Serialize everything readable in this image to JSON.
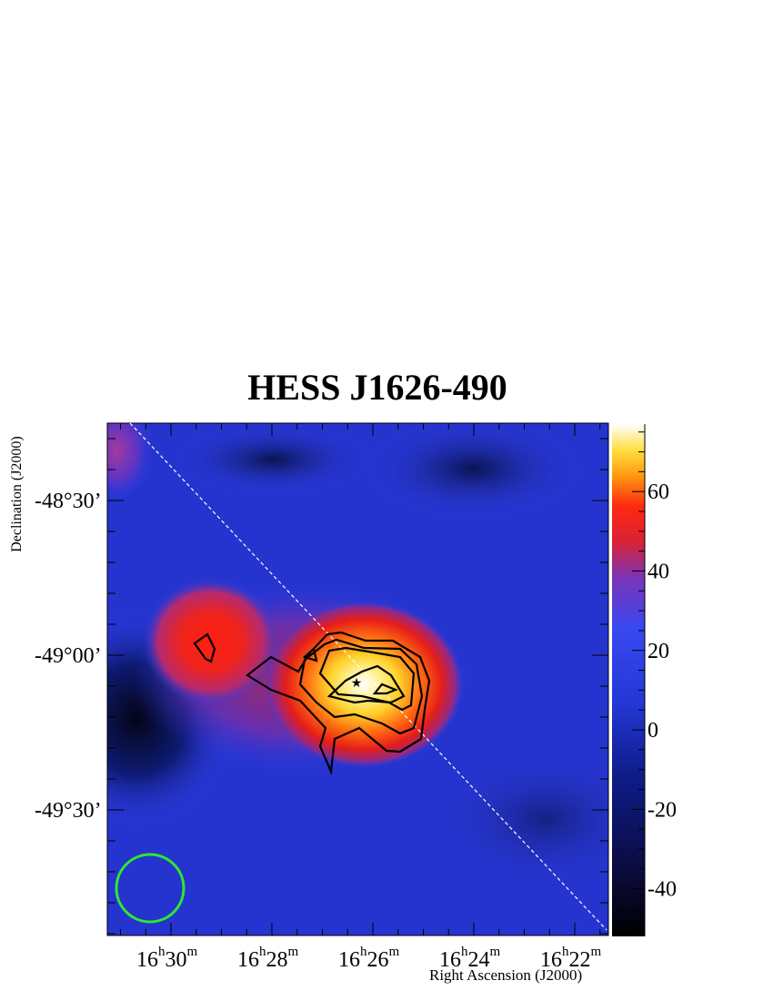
{
  "chart_data": {
    "type": "heatmap",
    "title": "HESS J1626-490",
    "xlabel": "Right Ascension (J2000)",
    "ylabel": "Declination (J2000)",
    "x_ticks": [
      {
        "h": "16",
        "m": "30"
      },
      {
        "h": "16",
        "m": "28"
      },
      {
        "h": "16",
        "m": "26"
      },
      {
        "h": "16",
        "m": "24"
      },
      {
        "h": "16",
        "m": "22"
      }
    ],
    "y_ticks": [
      "-48°30’",
      "-49°00’",
      "-49°30’"
    ],
    "colorbar": {
      "range": [
        -52,
        77
      ],
      "ticks": [
        "60",
        "40",
        "20",
        "0",
        "-20",
        "-40"
      ],
      "tick_values": [
        60,
        40,
        20,
        0,
        -20,
        -40
      ]
    },
    "source_peak": {
      "ra": "16h26m",
      "dec": "-49°05’",
      "value": 77
    },
    "secondary_peak": {
      "ra": "16h29m",
      "dec": "-48°59’",
      "value": 52
    },
    "galactic_plane": {
      "style": "dashed",
      "color": "#ffffff"
    },
    "psf_circle": {
      "color": "#2ee82e"
    },
    "colors": {
      "low": "#000000",
      "mid_low": "#0a1a78",
      "mid": "#2b3de0",
      "high_mid": "#e8231a",
      "high": "#ffffff",
      "contour": "#000000"
    }
  }
}
